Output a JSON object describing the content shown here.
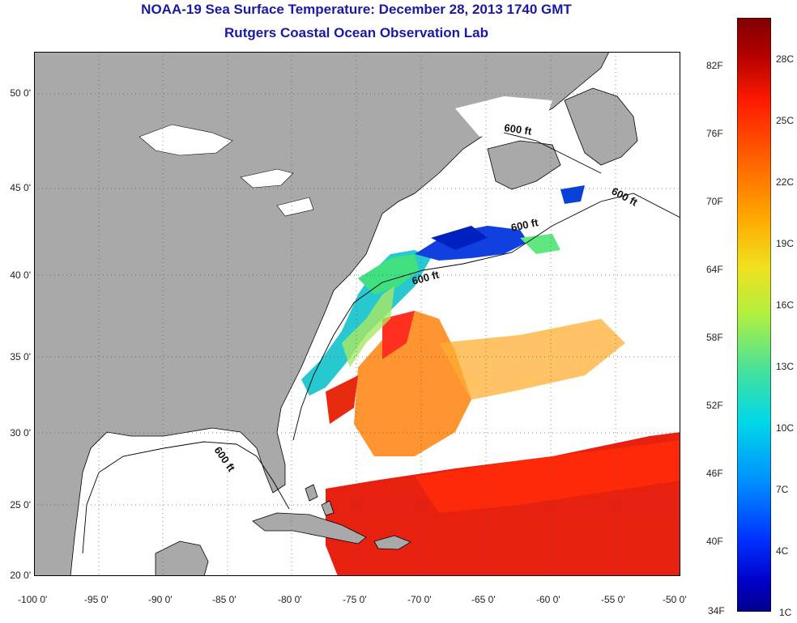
{
  "title": {
    "line1": "NOAA-19 Sea Surface Temperature:  December 28, 2013 1740 GMT",
    "line2": "Rutgers Coastal Ocean Observation Lab"
  },
  "map": {
    "lat_labels": [
      "50 0'",
      "45 0'",
      "40 0'",
      "35 0'",
      "30 0'",
      "25 0'",
      "20 0'"
    ],
    "lon_labels": [
      "-100 0'",
      "-95 0'",
      "-90 0'",
      "-85 0'",
      "-80 0'",
      "-75 0'",
      "-70 0'",
      "-65 0'",
      "-60 0'",
      "-55 0'",
      "-50 0'"
    ],
    "isobath_label": "600 ft",
    "colors": {
      "land": "#a9a9a9",
      "cloud": "#ffffff",
      "border": "#000000",
      "grid": "#555555"
    }
  },
  "colorbar": {
    "fahrenheit_labels": [
      "82F",
      "76F",
      "70F",
      "64F",
      "58F",
      "52F",
      "46F",
      "40F",
      "34F"
    ],
    "celsius_labels": [
      "28C",
      "25C",
      "22C",
      "19C",
      "16C",
      "13C",
      "10C",
      "7C",
      "4C",
      "1C"
    ],
    "gradient_colors": [
      "#800000",
      "#c00000",
      "#ff1a00",
      "#ff6a00",
      "#ffaa00",
      "#f0e020",
      "#b0f040",
      "#40e0a0",
      "#00d8e8",
      "#0090ff",
      "#0040ff",
      "#0000c8",
      "#00008b"
    ]
  }
}
